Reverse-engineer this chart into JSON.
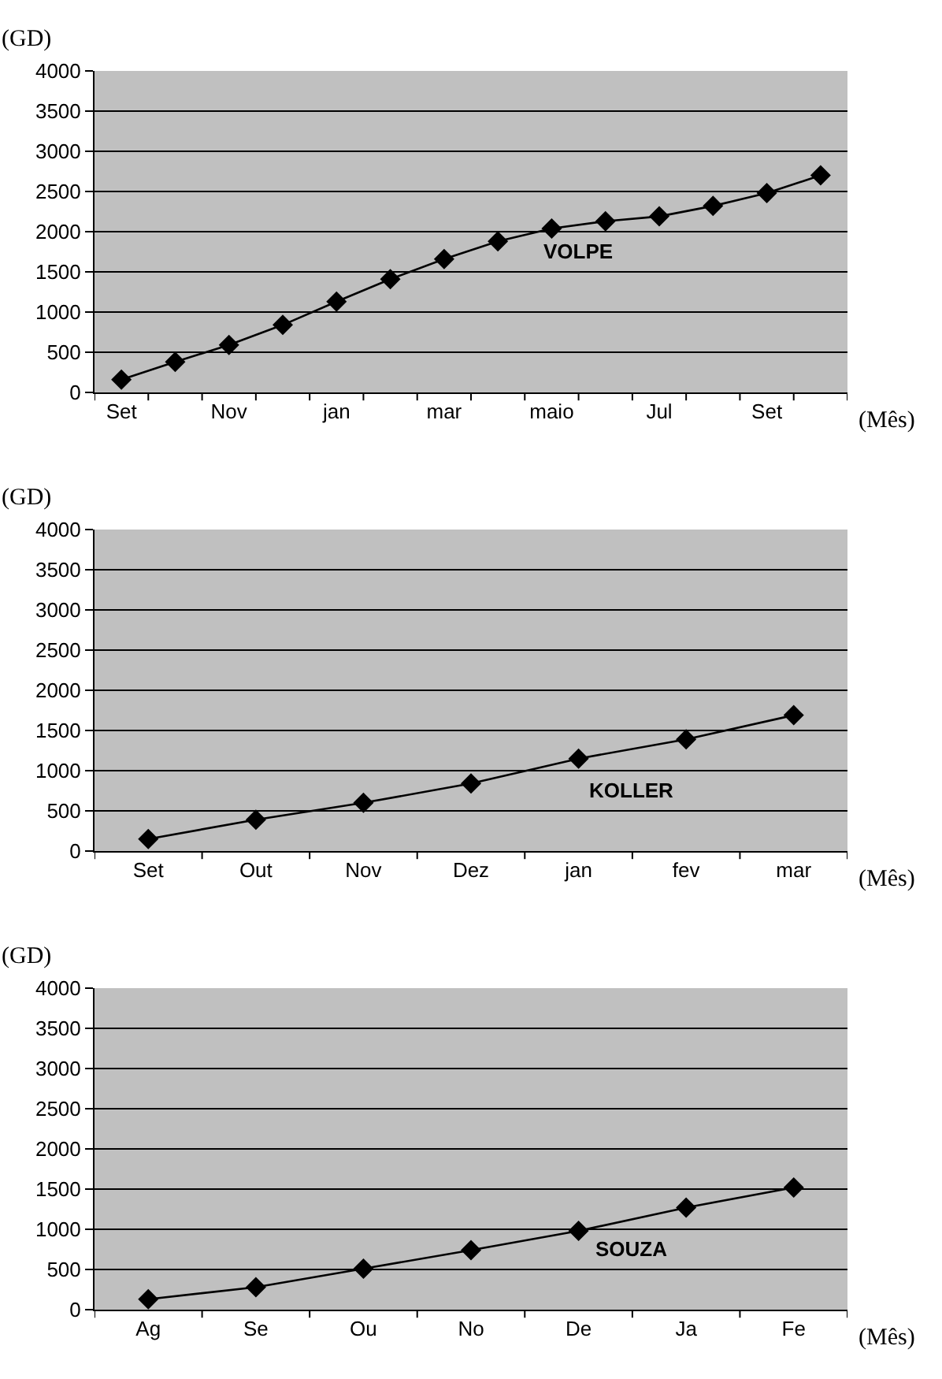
{
  "chart_data": [
    {
      "type": "line",
      "ylabel": "(GD)",
      "xlabel": "(Mês)",
      "categories": [
        "Set",
        null,
        "Nov",
        null,
        "jan",
        null,
        "mar",
        null,
        "maio",
        null,
        "Jul",
        null,
        "Set",
        null
      ],
      "series": [
        {
          "name": "VOLPE",
          "color": "#000000",
          "values": [
            160,
            380,
            590,
            840,
            1130,
            1410,
            1660,
            1880,
            2040,
            2130,
            2190,
            2320,
            2480,
            2700
          ]
        }
      ],
      "ylim": [
        0,
        4000
      ],
      "yticks": [
        0,
        500,
        1000,
        1500,
        2000,
        2500,
        3000,
        3500,
        4000
      ],
      "grid": "y",
      "marker": "diamond"
    },
    {
      "type": "line",
      "ylabel": "(GD)",
      "xlabel": "(Mês)",
      "categories": [
        "Set",
        "Out",
        "Nov",
        "Dez",
        "jan",
        "fev",
        "mar"
      ],
      "series": [
        {
          "name": "KOLLER",
          "color": "#000000",
          "values": [
            150,
            390,
            600,
            840,
            1150,
            1390,
            1690
          ]
        }
      ],
      "ylim": [
        0,
        4000
      ],
      "yticks": [
        0,
        500,
        1000,
        1500,
        2000,
        2500,
        3000,
        3500,
        4000
      ],
      "grid": "y",
      "marker": "diamond"
    },
    {
      "type": "line",
      "ylabel": "(GD)",
      "xlabel": "(Mês)",
      "categories": [
        "Ag",
        "Se",
        "Ou",
        "No",
        "De",
        "Ja",
        "Fe"
      ],
      "series": [
        {
          "name": "SOUZA",
          "color": "#000000",
          "values": [
            130,
            280,
            510,
            740,
            980,
            1270,
            1520
          ]
        }
      ],
      "ylim": [
        0,
        4000
      ],
      "yticks": [
        0,
        500,
        1000,
        1500,
        2000,
        2500,
        3000,
        3500,
        4000
      ],
      "grid": "y",
      "marker": "diamond"
    }
  ]
}
